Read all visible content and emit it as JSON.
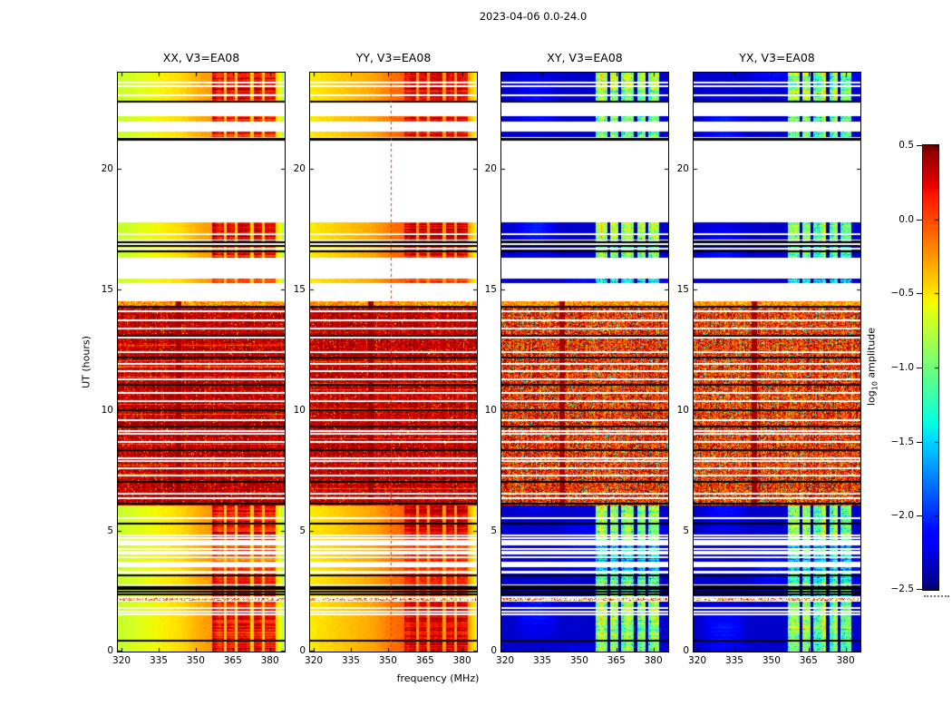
{
  "figure": {
    "title": "2023-04-06 0.0-24.0",
    "xlabel": "frequency (MHz)",
    "ylabel": "UT (hours)",
    "colorbar_label": {
      "pre": "log",
      "sub": "10",
      "post": " amplitude"
    }
  },
  "chart_data": {
    "type": "heatmap",
    "title": "2023-04-06 0.0-24.0",
    "xlabel": "frequency (MHz)",
    "ylabel": "UT (hours)",
    "colormap": "jet",
    "xlim": [
      318.5,
      386.0
    ],
    "ylim": [
      0,
      24
    ],
    "clim": [
      -2.5,
      0.5
    ],
    "xticks": [
      320,
      335,
      350,
      365,
      380
    ],
    "xtick_labels": [
      "320",
      "335",
      "350",
      "365",
      "380"
    ],
    "yticks": [
      0,
      5,
      10,
      15,
      20
    ],
    "ytick_labels": [
      "0",
      "5",
      "10",
      "15",
      "20"
    ],
    "colorbar": {
      "label": "log10 amplitude",
      "ticks": [
        0.5,
        0.0,
        -0.5,
        -1.0,
        -1.5,
        -2.0,
        -2.5
      ],
      "tick_labels": [
        "0.5",
        "0.0",
        "−0.5",
        "−1.0",
        "−1.5",
        "−2.0",
        "−2.5"
      ]
    },
    "panels": [
      {
        "title": "XX, V3=EA08",
        "mode": "auto",
        "seed": 11,
        "base": -0.72,
        "ramp": 0.34,
        "bump": 0.12,
        "blob_delta": 0.78
      },
      {
        "title": "YY, V3=EA08",
        "mode": "auto",
        "seed": 23,
        "base": -0.52,
        "ramp": 0.3,
        "bump": 0.14,
        "blob_delta": 0.68,
        "feature_line": {
          "f": 351.0,
          "v": 0.12,
          "dashed": true
        }
      },
      {
        "title": "XY, V3=EA08",
        "mode": "cross",
        "seed": 37,
        "base": -2.3,
        "mottle": 0.3,
        "blob_delta": 1.9
      },
      {
        "title": "YX, V3=EA08",
        "mode": "cross",
        "seed": 53,
        "base": -2.3,
        "mottle": 0.3,
        "blob_delta": 1.9
      }
    ],
    "blob_columns": [
      [
        356.5,
        361.5
      ],
      [
        362.5,
        366.0
      ],
      [
        367.0,
        372.0
      ],
      [
        373.5,
        377.0
      ],
      [
        378.0,
        382.5
      ]
    ],
    "blob_region": [
      356.5,
      382.5
    ],
    "quiet_bands": [
      {
        "range": [
          0.0,
          2.08
        ],
        "blob": 1.0,
        "black_lines": [
          0.47
        ],
        "white_lines": [
          1.55,
          1.67,
          1.8
        ]
      },
      {
        "range": [
          2.28,
          2.76
        ],
        "blob": 0.85,
        "black_lines": [
          2.36,
          2.47,
          2.58,
          2.68
        ],
        "white_lines": []
      },
      {
        "range": [
          2.8,
          3.22
        ],
        "blob": 0.85,
        "black_lines": [
          3.17
        ],
        "white_lines": []
      },
      {
        "range": [
          3.33,
          3.48
        ],
        "blob": 0.55,
        "black_lines": [],
        "white_lines": []
      },
      {
        "range": [
          3.72,
          3.86
        ],
        "blob": 0.55,
        "black_lines": [],
        "white_lines": []
      },
      {
        "range": [
          3.95,
          4.23
        ],
        "blob": 0.75,
        "black_lines": [],
        "white_lines": [
          4.05,
          4.13
        ]
      },
      {
        "range": [
          4.28,
          4.4
        ],
        "blob": 0.55,
        "black_lines": [],
        "white_lines": []
      },
      {
        "range": [
          4.63,
          6.04
        ],
        "blob": 1.0,
        "black_lines": [
          5.3
        ],
        "white_lines": [
          4.72,
          4.8,
          5.52
        ]
      },
      {
        "range": [
          15.27,
          15.47
        ],
        "blob": 0.6,
        "black_lines": [],
        "white_lines": []
      },
      {
        "range": [
          16.33,
          17.04
        ],
        "blob": 0.9,
        "black_lines": [
          16.6,
          16.8,
          16.95
        ],
        "white_lines": [
          16.7,
          16.88
        ]
      },
      {
        "range": [
          17.08,
          17.8
        ],
        "blob": 1.0,
        "black_lines": [],
        "white_lines": [
          17.3
        ]
      },
      {
        "range": [
          21.33,
          21.56
        ],
        "blob": 0.85,
        "black_lines": [],
        "white_lines": []
      },
      {
        "range": [
          21.97,
          22.2
        ],
        "blob": 0.85,
        "black_lines": [],
        "white_lines": []
      },
      {
        "range": [
          22.75,
          24.0
        ],
        "blob": 1.0,
        "black_lines": [
          22.79
        ],
        "white_lines": [
          23.05,
          23.45,
          23.57
        ]
      }
    ],
    "speckle_bands": [
      [
        2.1,
        2.22
      ]
    ],
    "black_bars": [
      [
        21.18,
        21.3
      ]
    ],
    "active_band": {
      "range": [
        6.06,
        14.52
      ],
      "white_lines": [
        6.35,
        6.55,
        7.3,
        7.6,
        7.9,
        8.02,
        8.7,
        9.02,
        9.15,
        9.6,
        10.4,
        10.72,
        11.3,
        11.62,
        11.92,
        12.4,
        13.0,
        13.4,
        13.72,
        14.1
      ],
      "black_lines": [
        6.15,
        7.05,
        8.35,
        9.32,
        10.02,
        11.05,
        12.2,
        13.1,
        14.3
      ],
      "dark_columns": [
        [
          341.8,
          344.2
        ]
      ],
      "bright_top": 14.3
    }
  }
}
